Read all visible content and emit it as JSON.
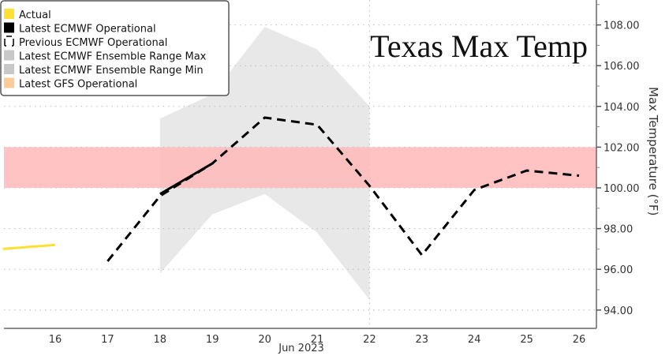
{
  "chart_data": {
    "type": "line",
    "title": "Texas Max Temp",
    "xlabel": "Jun 2023",
    "ylabel": "Max Temperature (°F)",
    "x_ticks": [
      "16",
      "17",
      "18",
      "19",
      "20",
      "21",
      "22",
      "23",
      "24",
      "25",
      "26"
    ],
    "y_ticks": [
      "94.00",
      "96.00",
      "98.00",
      "100.00",
      "102.00",
      "104.00",
      "106.00",
      "108.00"
    ],
    "xlim": [
      15.0,
      26.3
    ],
    "ylim": [
      93.2,
      109.2
    ],
    "grid": true,
    "legend_position": "top-left",
    "threshold_band": {
      "from": 100,
      "to": 102,
      "color": "#ffb8b8"
    },
    "forecast_marker_x": 22,
    "legend": [
      {
        "label": "Actual",
        "color": "#ffe033"
      },
      {
        "label": "Latest ECMWF Operational",
        "color": "#000000"
      },
      {
        "label": "Previous ECMWF Operational",
        "color": "#000000"
      },
      {
        "label": "Latest ECMWF Ensemble Range Max",
        "color": "#c8c8c8"
      },
      {
        "label": "Latest ECMWF Ensemble Range Min",
        "color": "#c8c8c8"
      },
      {
        "label": "Latest GFS Operational",
        "color": "#ffcc99"
      }
    ],
    "series": [
      {
        "name": "Actual",
        "color": "#ffe033",
        "style": "solid",
        "x": [
          15.0,
          16
        ],
        "y": [
          97.0,
          97.2
        ]
      },
      {
        "name": "Latest ECMWF Operational",
        "color": "#000000",
        "style": "solid",
        "x": [
          18,
          19
        ],
        "y": [
          99.7,
          101.2
        ]
      },
      {
        "name": "Previous ECMWF Operational",
        "color": "#000000",
        "style": "dashed",
        "x": [
          17,
          18,
          19,
          20,
          21,
          22,
          23,
          24,
          25,
          26
        ],
        "y": [
          96.4,
          99.6,
          101.2,
          103.45,
          103.1,
          100.1,
          96.7,
          99.9,
          100.85,
          100.6
        ]
      },
      {
        "name": "Latest ECMWF Ensemble Range Max",
        "color": "#e8e8e8",
        "x": [
          18,
          19,
          20,
          21,
          22
        ],
        "y": [
          103.4,
          104.6,
          107.9,
          106.8,
          104.0
        ]
      },
      {
        "name": "Latest ECMWF Ensemble Range Min",
        "color": "#e8e8e8",
        "x": [
          18,
          19,
          20,
          21,
          22
        ],
        "y": [
          95.8,
          98.7,
          99.7,
          97.8,
          94.5
        ]
      }
    ]
  }
}
